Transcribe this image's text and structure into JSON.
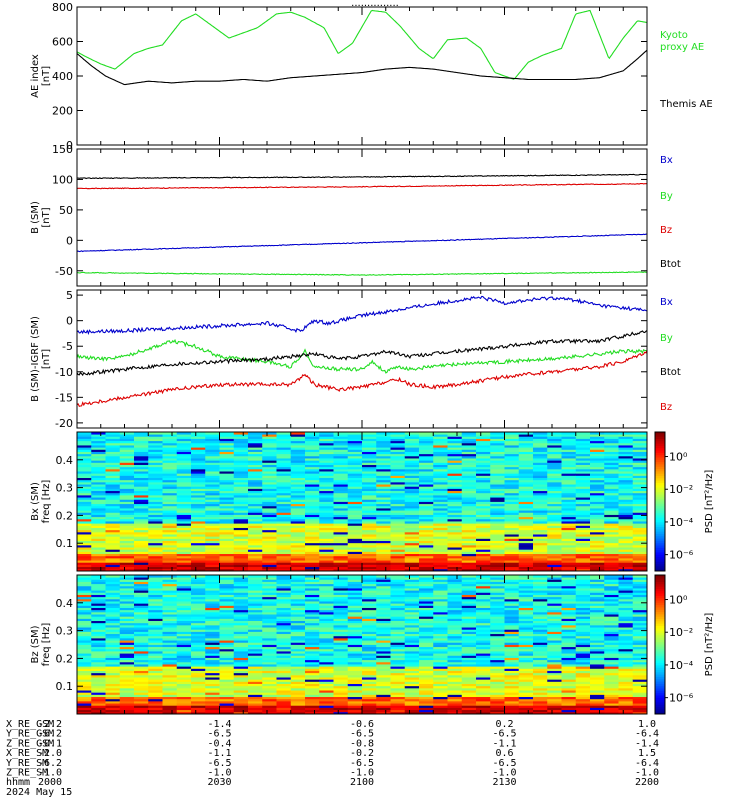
{
  "page_title": "...............",
  "chart_data": [
    {
      "id": "ae",
      "type": "line",
      "ylabel": [
        "AE index",
        "[nT]"
      ],
      "ylim": [
        0,
        800
      ],
      "y_ticks": [
        0,
        200,
        400,
        600,
        800
      ],
      "y_tick_labels": [
        "0",
        "200",
        "400",
        "600",
        "800"
      ],
      "xlim": [
        1200,
        1320
      ],
      "series": [
        {
          "name": "Kyoto proxy AE",
          "color": "#22dd22",
          "x": [
            1200,
            1202,
            1205,
            1208,
            1212,
            1215,
            1218,
            1222,
            1225,
            1228,
            1232,
            1235,
            1238,
            1242,
            1245,
            1248,
            1252,
            1255,
            1258,
            1262,
            1265,
            1268,
            1272,
            1275,
            1278,
            1282,
            1285,
            1288,
            1292,
            1295,
            1298,
            1302,
            1305,
            1308,
            1312,
            1315,
            1318,
            1320
          ],
          "y": [
            540,
            510,
            470,
            440,
            530,
            560,
            580,
            720,
            760,
            700,
            620,
            650,
            680,
            760,
            770,
            740,
            680,
            530,
            590,
            780,
            770,
            690,
            560,
            500,
            610,
            620,
            560,
            420,
            380,
            480,
            520,
            560,
            760,
            780,
            500,
            620,
            720,
            710
          ]
        },
        {
          "name": "Themis AE",
          "color": "#000000",
          "x": [
            1200,
            1203,
            1206,
            1210,
            1215,
            1220,
            1225,
            1230,
            1235,
            1240,
            1245,
            1250,
            1255,
            1260,
            1265,
            1270,
            1275,
            1280,
            1285,
            1290,
            1295,
            1300,
            1305,
            1310,
            1315,
            1318,
            1320
          ],
          "y": [
            530,
            460,
            400,
            350,
            370,
            360,
            370,
            370,
            380,
            370,
            390,
            400,
            410,
            420,
            440,
            450,
            440,
            420,
            400,
            390,
            380,
            380,
            380,
            390,
            430,
            500,
            550
          ]
        }
      ]
    },
    {
      "id": "bsm",
      "type": "line",
      "ylabel": [
        "B (SM)",
        "[nT]"
      ],
      "ylim": [
        -75,
        150
      ],
      "y_ticks": [
        -50,
        0,
        50,
        100,
        150
      ],
      "y_tick_labels": [
        "-50",
        "0",
        "50",
        "100",
        "150"
      ],
      "xlim": [
        1200,
        1320
      ],
      "series": [
        {
          "name": "Bx",
          "color": "#0000cc",
          "x": [
            1200,
            1320
          ],
          "y": [
            -18,
            10
          ]
        },
        {
          "name": "By",
          "color": "#22dd22",
          "x": [
            1200,
            1260,
            1320
          ],
          "y": [
            -53,
            -57,
            -52
          ]
        },
        {
          "name": "Bz",
          "color": "#dd0000",
          "x": [
            1200,
            1260,
            1320
          ],
          "y": [
            85,
            88,
            93
          ]
        },
        {
          "name": "Btot",
          "color": "#000000",
          "x": [
            1200,
            1260,
            1320
          ],
          "y": [
            102,
            104,
            108
          ]
        }
      ]
    },
    {
      "id": "bdiff",
      "type": "line",
      "ylabel": [
        "B (SM)-IGRF (SM)",
        "[nT]"
      ],
      "ylim": [
        -21,
        6
      ],
      "y_ticks": [
        -20,
        -15,
        -10,
        -5,
        0,
        5
      ],
      "y_tick_labels": [
        "-20",
        "-15",
        "-10",
        "-5",
        "0",
        "5"
      ],
      "xlim": [
        1200,
        1320
      ],
      "series": [
        {
          "name": "Bx",
          "color": "#0000cc",
          "x": [
            1200,
            1210,
            1220,
            1230,
            1240,
            1247,
            1250,
            1253,
            1260,
            1270,
            1280,
            1285,
            1290,
            1300,
            1305,
            1310,
            1315,
            1320
          ],
          "y": [
            -2.2,
            -2,
            -1.5,
            -1,
            -0.5,
            -2,
            0,
            -0.5,
            1,
            2.5,
            4,
            4.5,
            3.5,
            4.5,
            4,
            3,
            2.5,
            2
          ]
        },
        {
          "name": "By",
          "color": "#22dd22",
          "x": [
            1200,
            1205,
            1210,
            1215,
            1220,
            1225,
            1230,
            1235,
            1240,
            1245,
            1248,
            1250,
            1255,
            1260,
            1262,
            1265,
            1268,
            1270,
            1275,
            1280,
            1290,
            1300,
            1310,
            1315,
            1320
          ],
          "y": [
            -7,
            -7.5,
            -7,
            -5.5,
            -4,
            -5,
            -7,
            -7.5,
            -8,
            -9,
            -6,
            -9,
            -9.5,
            -9.5,
            -8,
            -10,
            -9,
            -9.5,
            -9,
            -8.5,
            -8,
            -7.5,
            -6.5,
            -6,
            -6
          ]
        },
        {
          "name": "Btot",
          "color": "#000000",
          "x": [
            1200,
            1210,
            1220,
            1230,
            1240,
            1250,
            1255,
            1260,
            1265,
            1270,
            1280,
            1290,
            1300,
            1310,
            1315,
            1320
          ],
          "y": [
            -10.5,
            -9.5,
            -8.5,
            -8,
            -7.5,
            -6.5,
            -7.5,
            -7,
            -6,
            -7,
            -6,
            -5,
            -4,
            -4,
            -3,
            -2
          ]
        },
        {
          "name": "Bz",
          "color": "#dd0000",
          "x": [
            1200,
            1210,
            1220,
            1230,
            1240,
            1245,
            1248,
            1250,
            1255,
            1260,
            1265,
            1268,
            1270,
            1275,
            1280,
            1290,
            1300,
            1310,
            1315,
            1320
          ],
          "y": [
            -16.5,
            -15,
            -13.5,
            -12.5,
            -12.5,
            -12.5,
            -10.5,
            -12.5,
            -13.5,
            -13,
            -12,
            -11.5,
            -12.5,
            -13,
            -12.5,
            -11,
            -10,
            -9,
            -8,
            -6
          ]
        }
      ]
    },
    {
      "id": "spec_bx",
      "type": "heatmap",
      "ylabel": [
        "Bx (SM)",
        "freq [Hz]"
      ],
      "ylim": [
        0,
        0.5
      ],
      "y_ticks": [
        0.1,
        0.2,
        0.3,
        0.4
      ],
      "y_tick_labels": [
        "0.1",
        "0.2",
        "0.3",
        "0.4"
      ],
      "xlim": [
        1200,
        1320
      ],
      "colorbar": {
        "label": "PSD [nT²/Hz]",
        "scale": "log",
        "range": [
          -7,
          1.5
        ],
        "tick_values": [
          0,
          -2,
          -4,
          -6
        ],
        "tick_labels": [
          "10⁰",
          "10⁻²",
          "10⁻⁴",
          "10⁻⁶"
        ]
      },
      "note": "log10 power spectral density; high below 0.05 Hz, moderate below 0.17 Hz, lower and noisier above"
    },
    {
      "id": "spec_bz",
      "type": "heatmap",
      "ylabel": [
        "Bz (SM)",
        "freq [Hz]"
      ],
      "ylim": [
        0,
        0.5
      ],
      "y_ticks": [
        0.1,
        0.2,
        0.3,
        0.4
      ],
      "y_tick_labels": [
        "0.1",
        "0.2",
        "0.3",
        "0.4"
      ],
      "xlim": [
        1200,
        1320
      ],
      "colorbar": {
        "label": "PSD [nT²/Hz]",
        "scale": "log",
        "range": [
          -7,
          1.5
        ],
        "tick_values": [
          0,
          -2,
          -4,
          -6
        ],
        "tick_labels": [
          "10⁰",
          "10⁻²",
          "10⁻⁴",
          "10⁻⁶"
        ]
      },
      "note": "log10 power spectral density; high below 0.05 Hz, moderate below 0.17 Hz, lower above"
    }
  ],
  "ephemeris": {
    "x_tick_values": [
      1200,
      1230,
      1260,
      1290,
      1320
    ],
    "rows": [
      {
        "label": "X_RE_GSM",
        "values": [
          "-2.2",
          "-1.4",
          "-0.6",
          "0.2",
          "1.0"
        ]
      },
      {
        "label": "Y_RE_GSM",
        "values": [
          "-6.2",
          "-6.5",
          "-6.5",
          "-6.5",
          "-6.4"
        ]
      },
      {
        "label": "Z_RE_GSM",
        "values": [
          "-0.1",
          "-0.4",
          "-0.8",
          "-1.1",
          "-1.4"
        ]
      },
      {
        "label": "X_RE_SM",
        "values": [
          "-2.0",
          "-1.1",
          "-0.2",
          "0.6",
          "1.5"
        ]
      },
      {
        "label": "Y_RE_SM",
        "values": [
          "-6.2",
          "-6.5",
          "-6.5",
          "-6.5",
          "-6.4"
        ]
      },
      {
        "label": "Z_RE_SM",
        "values": [
          "-1.0",
          "-1.0",
          "-1.0",
          "-1.0",
          "-1.0"
        ]
      },
      {
        "label": "hhmm",
        "values": [
          "2000",
          "2030",
          "2100",
          "2130",
          "2200"
        ]
      }
    ],
    "date": "2024 May 15"
  }
}
